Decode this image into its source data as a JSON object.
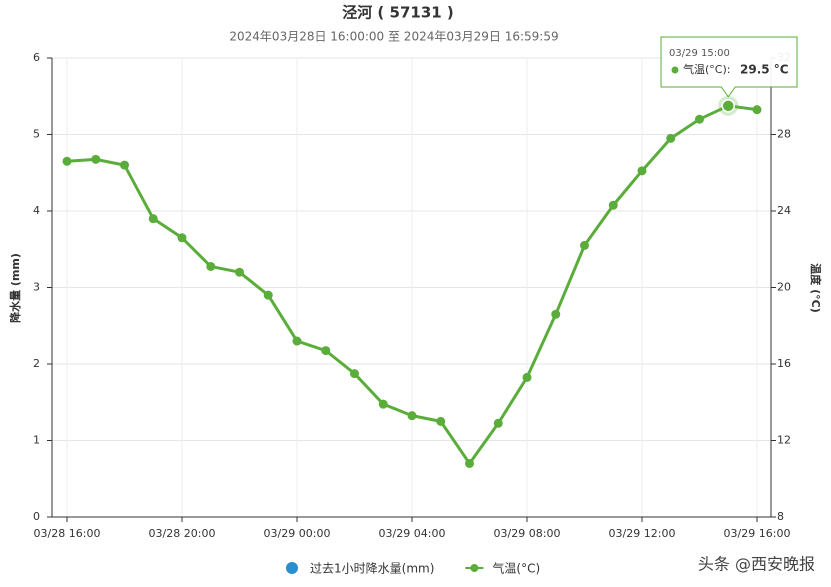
{
  "chart_data": {
    "type": "line",
    "title": "泾河 ( 57131 )",
    "subtitle": "2024年03月28日 16:00:00 至 2024年03月29日 16:59:59",
    "y_label": "降水量 (mm)",
    "y2_label": "温度 (°C)",
    "categories": [
      "03/28 16:00",
      null,
      null,
      null,
      "03/28 20:00",
      null,
      null,
      null,
      "03/29 00:00",
      null,
      null,
      null,
      "03/29 04:00",
      null,
      null,
      null,
      "03/29 08:00",
      null,
      null,
      null,
      "03/29 12:00",
      null,
      null,
      null,
      "03/29 16:00"
    ],
    "ylim": [
      0,
      6
    ],
    "yticks": [
      0,
      1,
      2,
      3,
      4,
      5,
      6
    ],
    "y2lim": [
      8,
      32
    ],
    "y2ticks": [
      8,
      12,
      16,
      20,
      24,
      28,
      32
    ],
    "grid": true,
    "legend": "bottom",
    "series": [
      {
        "name": "过去1小时降水量(mm)",
        "color": "#2a8fcc",
        "type": "bar",
        "values": [
          0,
          0,
          0,
          0,
          0,
          0,
          0,
          0,
          0,
          0,
          0,
          0,
          0,
          0,
          0,
          0,
          0,
          0,
          0,
          0,
          0,
          0,
          0,
          0,
          0
        ]
      },
      {
        "name": "气温(°C)",
        "color": "#5aad3a",
        "type": "line",
        "axis": "y2",
        "values": [
          26.6,
          26.7,
          26.4,
          23.6,
          22.6,
          21.1,
          20.8,
          19.6,
          17.2,
          16.7,
          15.5,
          13.9,
          13.3,
          13.0,
          10.8,
          12.9,
          15.3,
          18.6,
          22.2,
          24.3,
          26.1,
          27.8,
          28.8,
          29.5,
          29.3
        ]
      }
    ],
    "tooltip": {
      "title": "03/29 15:00",
      "label": "气温(°C):",
      "value_label": "29.5 °C"
    },
    "watermark": "头条 @西安晚报"
  }
}
